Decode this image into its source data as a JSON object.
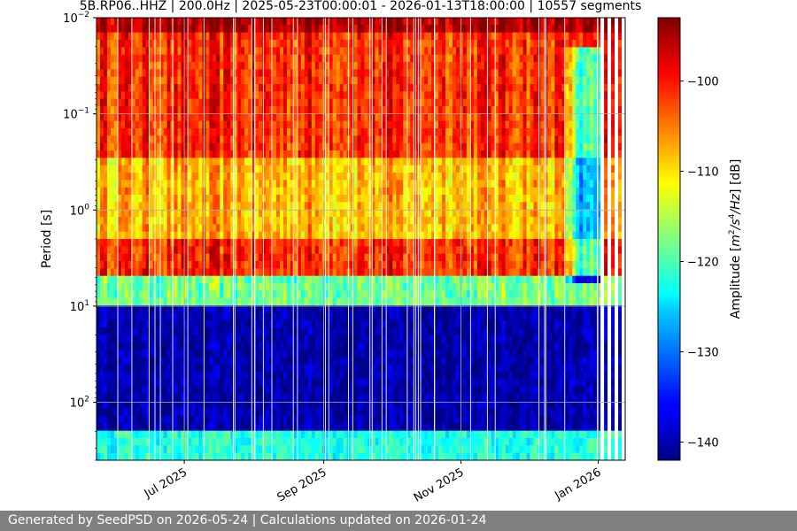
{
  "chart_data": {
    "type": "heatmap",
    "title": "5B.RP06..HHZ | 200.0Hz | 2025-05-23T00:00:01 - 2026-01-13T18:00:00 | 10557 segments",
    "ylabel": "Period [s]",
    "xlabel": "",
    "colorbar_label": "Amplitude [m²/s⁴/Hz] [dB]",
    "x_range": [
      "2025-05-23",
      "2026-01-13"
    ],
    "x_ticks": [
      {
        "date": "2025-07-01",
        "label": "Jul 2025"
      },
      {
        "date": "2025-09-01",
        "label": "Sep 2025"
      },
      {
        "date": "2025-11-01",
        "label": "Nov 2025"
      },
      {
        "date": "2026-01-01",
        "label": "Jan 2026"
      }
    ],
    "y_scale": "log",
    "y_inverted": true,
    "y_range": [
      0.01,
      400
    ],
    "y_ticks": [
      {
        "value": 0.01,
        "base": "10",
        "exp": "−2"
      },
      {
        "value": 0.1,
        "base": "10",
        "exp": "−1"
      },
      {
        "value": 1,
        "base": "10",
        "exp": "0"
      },
      {
        "value": 10,
        "base": "10",
        "exp": "1"
      },
      {
        "value": 100,
        "base": "10",
        "exp": "2"
      }
    ],
    "colorbar_range": [
      -142,
      -93
    ],
    "colorbar_ticks": [
      {
        "value": -100,
        "label": "−100"
      },
      {
        "value": -110,
        "label": "−110"
      },
      {
        "value": -120,
        "label": "−120"
      },
      {
        "value": -130,
        "label": "−130"
      },
      {
        "value": -140,
        "label": "−140"
      }
    ],
    "colormap": "jet",
    "grid": true,
    "typical_levels": [
      {
        "period_range": [
          0.01,
          0.015
        ],
        "db": -95
      },
      {
        "period_range": [
          0.015,
          0.3
        ],
        "db": -101
      },
      {
        "period_range": [
          0.3,
          2
        ],
        "db": -108
      },
      {
        "period_range": [
          2,
          5
        ],
        "db": -101
      },
      {
        "period_range": [
          5,
          10
        ],
        "db": -118
      },
      {
        "period_range": [
          10,
          200
        ],
        "db": -140
      },
      {
        "period_range": [
          200,
          400
        ],
        "db": -122
      }
    ],
    "notable_events": [
      {
        "date_range": [
          "2025-12-15",
          "2026-01-01"
        ],
        "description_db_shift": -20,
        "period_range": [
          0.02,
          6
        ]
      },
      {
        "date_range": [
          "2026-01-01",
          "2026-01-13"
        ],
        "gaps": true
      }
    ]
  },
  "footer": {
    "text": "Generated by SeedPSD on 2026-05-24 | Calculations updated on 2026-01-24"
  }
}
